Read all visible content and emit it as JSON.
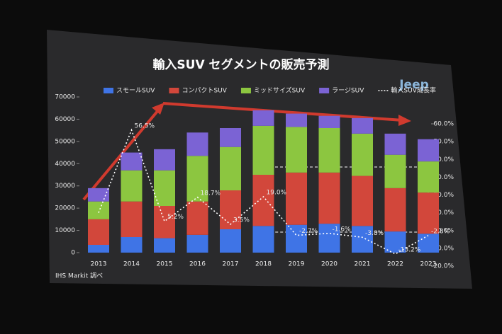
{
  "chart_data": {
    "type": "bar",
    "stacked": true,
    "title": "輸入SUV セグメントの販売予測",
    "logo": "Jeep",
    "source": "IHS Markit 調べ",
    "categories": [
      "2013",
      "2014",
      "2015",
      "2016",
      "2017",
      "2018",
      "2019",
      "2020",
      "2021",
      "2022",
      "2023"
    ],
    "series": [
      {
        "name": "スモールSUV",
        "color": "#3f74e6",
        "values": [
          3500,
          7000,
          6500,
          8000,
          10500,
          12000,
          12500,
          13000,
          12000,
          9500,
          8500
        ]
      },
      {
        "name": "コンパクトSUV",
        "color": "#d2473b",
        "values": [
          11500,
          16000,
          14500,
          15000,
          17500,
          23000,
          23500,
          23000,
          22500,
          19500,
          18500
        ]
      },
      {
        "name": "ミッドサイズSUV",
        "color": "#8cc640",
        "values": [
          8000,
          14000,
          16000,
          20500,
          19500,
          22000,
          20500,
          20000,
          19000,
          15000,
          14000
        ]
      },
      {
        "name": "ラージSUV",
        "color": "#7b63d4",
        "values": [
          6000,
          8000,
          9500,
          10500,
          8500,
          7000,
          6000,
          5500,
          7000,
          9500,
          10000
        ]
      },
      {
        "name": "輸入SUV成長率",
        "type": "line",
        "axis": "y2",
        "color": "#ffffff",
        "dashed": true,
        "values": [
          10,
          56.5,
          5.2,
          18.7,
          3.5,
          19.0,
          -2.7,
          -1.6,
          -3.8,
          -13.2,
          -2.8
        ],
        "value_labels": [
          null,
          "56.5%",
          "5.2%",
          "18.7%",
          "3.5%",
          "19.0%",
          "-2.7%",
          "-1.6%",
          "-3.8%",
          "-13.2%",
          "-2.8%"
        ]
      }
    ],
    "ylim": [
      0,
      70000
    ],
    "yticks": [
      0,
      10000,
      20000,
      30000,
      40000,
      50000,
      60000,
      70000
    ],
    "y2lim": [
      -20,
      60
    ],
    "y2ticks": [
      {
        "value": -20,
        "label": "-20.0%"
      },
      {
        "value": -10,
        "label": "-10.0%"
      },
      {
        "value": 0,
        "label": "0.0%"
      },
      {
        "value": 10,
        "label": "10.0%"
      },
      {
        "value": 20,
        "label": "20.0%"
      },
      {
        "value": 30,
        "label": "30.0%"
      },
      {
        "value": 40,
        "label": "40.0%"
      },
      {
        "value": 50,
        "label": "50.0%"
      },
      {
        "value": 60,
        "label": "60.0%"
      }
    ],
    "grid": false
  }
}
